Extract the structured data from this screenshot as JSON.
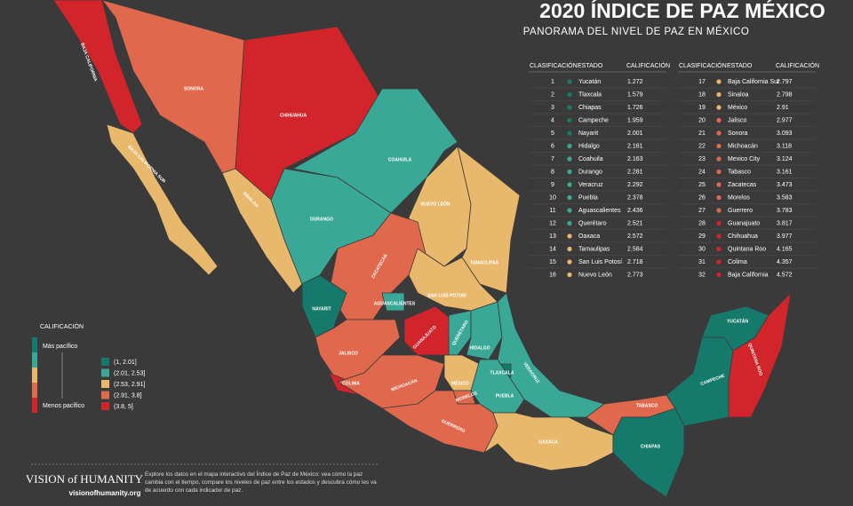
{
  "header": {
    "title": "2020 ÍNDICE DE PAZ MÉXICO",
    "subtitle": "PANORAMA DEL NIVEL DE PAZ EN MÉXICO"
  },
  "table": {
    "columns": [
      "CLASIFICACIÓN",
      "ESTADO",
      "CALIFICACIÓN"
    ],
    "rows": [
      [
        1,
        "Yucatán",
        1.272
      ],
      [
        2,
        "Tlaxcala",
        1.579
      ],
      [
        3,
        "Chiapas",
        1.726
      ],
      [
        4,
        "Campeche",
        1.959
      ],
      [
        5,
        "Nayarit",
        2.001
      ],
      [
        6,
        "Hidalgo",
        2.161
      ],
      [
        7,
        "Coahuila",
        2.163
      ],
      [
        8,
        "Durango",
        2.281
      ],
      [
        9,
        "Veracruz",
        2.292
      ],
      [
        10,
        "Puebla",
        2.378
      ],
      [
        11,
        "Aguascalientes",
        2.436
      ],
      [
        12,
        "Querétaro",
        2.521
      ],
      [
        13,
        "Oaxaca",
        2.572
      ],
      [
        14,
        "Tamaulipas",
        2.584
      ],
      [
        15,
        "San Luis Potosí",
        2.718
      ],
      [
        16,
        "Nuevo León",
        2.773
      ],
      [
        17,
        "Baja California Sur",
        2.797
      ],
      [
        18,
        "Sinaloa",
        2.798
      ],
      [
        19,
        "México",
        2.91
      ],
      [
        20,
        "Jalisco",
        2.977
      ],
      [
        21,
        "Sonora",
        3.093
      ],
      [
        22,
        "Michoacán",
        3.118
      ],
      [
        23,
        "Mexico City",
        3.124
      ],
      [
        24,
        "Tabasco",
        3.161
      ],
      [
        25,
        "Zacatecas",
        3.473
      ],
      [
        26,
        "Morelos",
        3.583
      ],
      [
        27,
        "Guerrero",
        3.783
      ],
      [
        28,
        "Guanajuato",
        3.817
      ],
      [
        29,
        "Chihuahua",
        3.977
      ],
      [
        30,
        "Quintana Roo",
        4.165
      ],
      [
        31,
        "Colima",
        4.357
      ],
      [
        32,
        "Baja California",
        4.572
      ]
    ]
  },
  "legend": {
    "title": "CALIFICACIÓN",
    "top": "Más pacífico",
    "bottom": "Menos pacífico",
    "items": [
      {
        "label": "(1, 2.01]",
        "color": "#157a6c"
      },
      {
        "label": "(2.01, 2.53]",
        "color": "#3aa897"
      },
      {
        "label": "(2.53, 2.91]",
        "color": "#e8b96c"
      },
      {
        "label": "(2.91, 3.8]",
        "color": "#e0694d"
      },
      {
        "label": "(3.8, 5]",
        "color": "#d1252b"
      }
    ]
  },
  "map": {
    "regions": [
      {
        "label": "BAJA CALIFORNIA",
        "color": "#d1252b"
      },
      {
        "label": "BAJA CALIFORNIA SUR",
        "color": "#e8b96c"
      },
      {
        "label": "SONORA",
        "color": "#e0694d"
      },
      {
        "label": "CHIHUAHUA",
        "color": "#d1252b"
      },
      {
        "label": "COAHUILA",
        "color": "#3aa897"
      },
      {
        "label": "SINALOA",
        "color": "#e8b96c"
      },
      {
        "label": "DURANGO",
        "color": "#3aa897"
      },
      {
        "label": "NUEVO LEÓN",
        "color": "#e8b96c"
      },
      {
        "label": "TAMAULIPAS",
        "color": "#e8b96c"
      },
      {
        "label": "ZACATECAS",
        "color": "#e0694d"
      },
      {
        "label": "SAN LUIS POTOSÍ",
        "color": "#e8b96c"
      },
      {
        "label": "NAYARIT",
        "color": "#157a6c"
      },
      {
        "label": "AGUASCALIENTES",
        "color": "#3aa897"
      },
      {
        "label": "JALISCO",
        "color": "#e0694d"
      },
      {
        "label": "GUANAJUATO",
        "color": "#d1252b"
      },
      {
        "label": "QUERÉTARO",
        "color": "#3aa897"
      },
      {
        "label": "HIDALGO",
        "color": "#3aa897"
      },
      {
        "label": "VERACRUZ",
        "color": "#3aa897"
      },
      {
        "label": "COLIMA",
        "color": "#d1252b"
      },
      {
        "label": "MICHOACÁN",
        "color": "#e0694d"
      },
      {
        "label": "MÉXICO",
        "color": "#e8b96c"
      },
      {
        "label": "MORELOS",
        "color": "#e0694d"
      },
      {
        "label": "TLAXCALA",
        "color": "#157a6c"
      },
      {
        "label": "PUEBLA",
        "color": "#3aa897"
      },
      {
        "label": "GUERRERO",
        "color": "#e0694d"
      },
      {
        "label": "OAXACA",
        "color": "#e8b96c"
      },
      {
        "label": "TABASCO",
        "color": "#e0694d"
      },
      {
        "label": "CHIAPAS",
        "color": "#157a6c"
      },
      {
        "label": "CAMPECHE",
        "color": "#157a6c"
      },
      {
        "label": "YUCATÁN",
        "color": "#157a6c"
      },
      {
        "label": "QUINTANA ROO",
        "color": "#d1252b"
      }
    ]
  },
  "footer": {
    "brand": "VISION of HUMANITY",
    "url": "visionofhumanity.org",
    "text": "Explore los datos en el mapa interactivo del Índice de Paz de México: vea cómo la paz cambia con el tiempo, compare los niveles de paz entre los estados y descubra cómo les va de acuerdo con cada indicador de paz."
  }
}
